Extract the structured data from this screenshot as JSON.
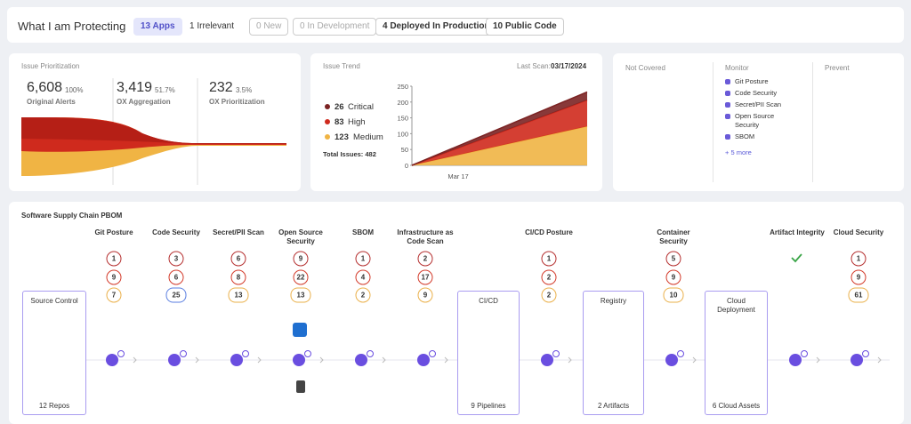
{
  "header": {
    "title": "What I am Protecting",
    "filters": [
      "13 Apps",
      "1 Irrelevant",
      "0 New",
      "0 In Development",
      "4 Deployed In Production",
      "10 Public Code"
    ]
  },
  "issue_prioritization": {
    "title": "Issue Prioritization",
    "stats": [
      {
        "value": "6,608",
        "percent": "100%",
        "label": "Original Alerts"
      },
      {
        "value": "3,419",
        "percent": "51.7%",
        "label": "OX Aggregation"
      },
      {
        "value": "232",
        "percent": "3.5%",
        "label": "OX Prioritization"
      }
    ]
  },
  "issue_trend": {
    "title": "Issue Trend",
    "last_scan_label": "Last Scan:",
    "last_scan": "03/17/2024",
    "legend": [
      {
        "count": "26",
        "label": "Critical",
        "color": "#7b2323"
      },
      {
        "count": "83",
        "label": "High",
        "color": "#cf2a1d"
      },
      {
        "count": "123",
        "label": "Medium",
        "color": "#f0b444"
      }
    ],
    "total": "Total Issues: 482",
    "chart": {
      "type": "area",
      "stacked": true,
      "x_label": "Mar 17",
      "ylim": [
        0,
        250
      ],
      "yticks": [
        0,
        50,
        100,
        150,
        200,
        250
      ],
      "series": [
        {
          "values": [
            0,
            26
          ]
        },
        {
          "values": [
            0,
            83
          ]
        },
        {
          "values": [
            0,
            123
          ]
        }
      ]
    }
  },
  "coverage": {
    "columns": [
      {
        "title": "Not Covered"
      },
      {
        "title": "Monitor",
        "items": [
          "Git Posture",
          "Code Security",
          "Secret/PII Scan",
          "Open Source Security",
          "SBOM"
        ],
        "more": "+ 5 more"
      },
      {
        "title": "Prevent"
      }
    ]
  },
  "pbom": {
    "title": "Software Supply Chain PBOM",
    "checks": [
      {
        "name": "Git Posture",
        "counts": [
          1,
          9,
          7
        ]
      },
      {
        "name": "Code Security",
        "counts": [
          3,
          6,
          25
        ]
      },
      {
        "name": "Secret/PII Scan",
        "counts": [
          6,
          8,
          13
        ]
      },
      {
        "name": "Open Source Security",
        "counts": [
          9,
          22,
          13
        ]
      },
      {
        "name": "SBOM",
        "counts": [
          1,
          4,
          2
        ]
      },
      {
        "name": "Infrastructure as Code Scan",
        "counts": [
          2,
          17,
          9
        ]
      },
      {
        "name": "CI/CD Posture",
        "counts": [
          1,
          2,
          2
        ]
      },
      {
        "name": "Container Security",
        "counts": [
          5,
          9,
          10
        ]
      },
      {
        "name": "Artifact Integrity"
      },
      {
        "name": "Cloud Security",
        "counts": [
          1,
          9,
          61
        ]
      }
    ],
    "stages": [
      {
        "name": "Source Control",
        "footer": "12 Repos"
      },
      {
        "name": "CI/CD",
        "footer": "9 Pipelines"
      },
      {
        "name": "Registry",
        "footer": "2 Artifacts"
      },
      {
        "name": "Cloud Deployment",
        "footer": "6 Cloud Assets"
      }
    ]
  }
}
